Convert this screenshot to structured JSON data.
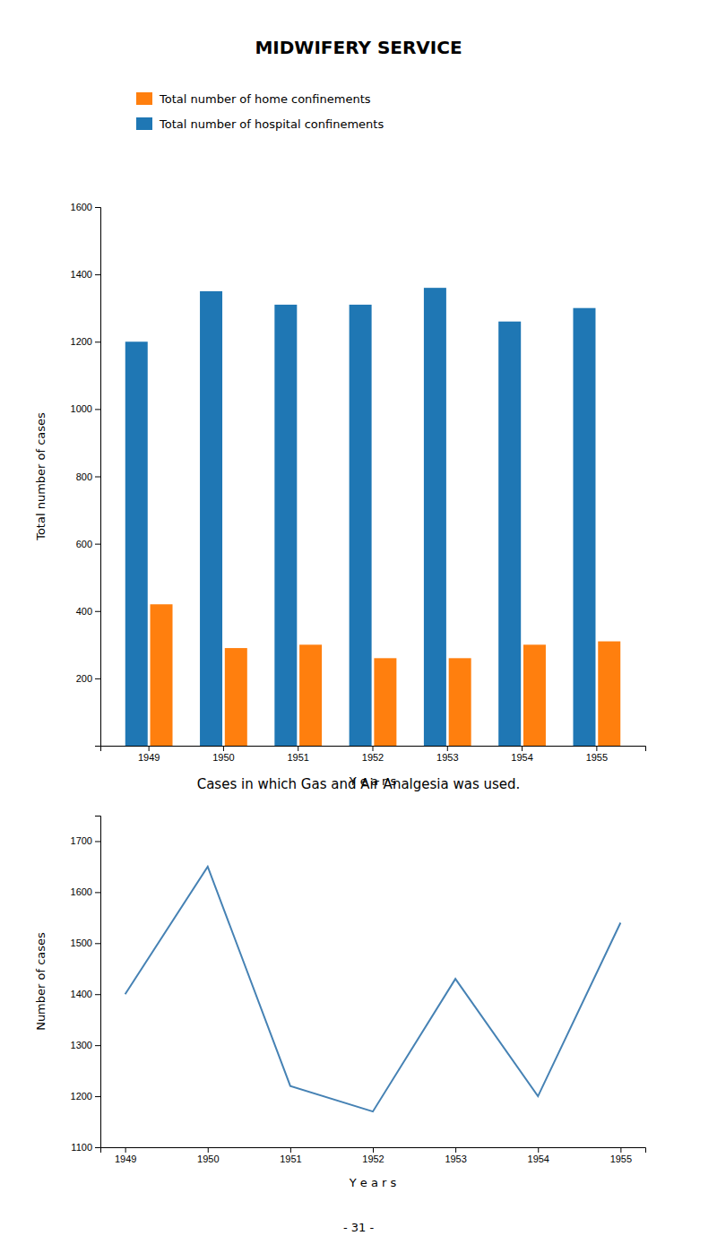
{
  "chart_data": [
    {
      "type": "bar",
      "title": "MIDWIFERY  SERVICE",
      "categories": [
        "1949",
        "1950",
        "1951",
        "1952",
        "1953",
        "1954",
        "1955"
      ],
      "series": [
        {
          "name": "Total number of hospital confinements",
          "values": [
            1200,
            1350,
            1310,
            1310,
            1360,
            1260,
            1300
          ]
        },
        {
          "name": "Total number of home confinements",
          "values": [
            420,
            290,
            300,
            260,
            260,
            300,
            310
          ]
        }
      ],
      "ylim": [
        0,
        1600
      ],
      "yticks": [
        200,
        400,
        600,
        800,
        1000,
        1200,
        1400,
        1600
      ],
      "ylabel": "Total number of cases",
      "xlabel": "Y e a r s",
      "grid": false
    },
    {
      "type": "line",
      "title": "Cases in which Gas and Air Analgesia was used.",
      "categories": [
        "1949",
        "1950",
        "1951",
        "1952",
        "1953",
        "1954",
        "1955"
      ],
      "values": [
        1400,
        1650,
        1220,
        1170,
        1430,
        1200,
        1540
      ],
      "ylim": [
        1100,
        1750
      ],
      "yticks": [
        1100,
        1200,
        1300,
        1400,
        1500,
        1600,
        1700
      ],
      "ylabel": "Number of cases",
      "xlabel": "Y e a r s",
      "grid": false,
      "annotations": [
        "- 31 -"
      ]
    }
  ]
}
